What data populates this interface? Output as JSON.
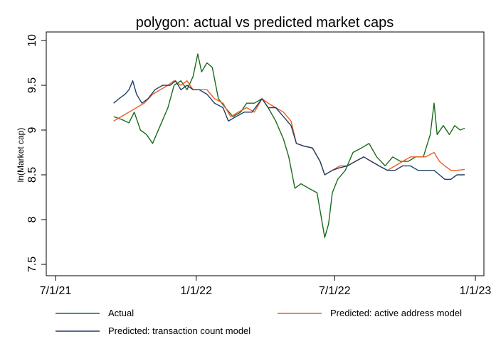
{
  "chart_data": {
    "type": "line",
    "title": "polygon: actual vs predicted market caps",
    "xlabel": "",
    "ylabel": "ln(Market cap)",
    "xlim": [
      "2021-07-01",
      "2023-01-01"
    ],
    "ylim": [
      7.5,
      10
    ],
    "x_ticks": [
      {
        "date": "2021-07-01",
        "label": "7/1/21"
      },
      {
        "date": "2022-01-01",
        "label": "1/1/22"
      },
      {
        "date": "2022-07-01",
        "label": "7/1/22"
      },
      {
        "date": "2023-01-01",
        "label": "1/1/23"
      }
    ],
    "y_ticks": [
      {
        "value": 7.5,
        "label": "7.5"
      },
      {
        "value": 8,
        "label": "8"
      },
      {
        "value": 8.5,
        "label": "8.5"
      },
      {
        "value": 9,
        "label": "9"
      },
      {
        "value": 9.5,
        "label": "9.5"
      },
      {
        "value": 10,
        "label": "10"
      }
    ],
    "grid": false,
    "legend_position": "bottom",
    "series": [
      {
        "name": "Actual",
        "color": "#1a6b1a",
        "points": [
          [
            "2021-09-15",
            9.15
          ],
          [
            "2021-09-25",
            9.12
          ],
          [
            "2021-10-05",
            9.08
          ],
          [
            "2021-10-12",
            9.2
          ],
          [
            "2021-10-20",
            9.0
          ],
          [
            "2021-10-28",
            8.95
          ],
          [
            "2021-11-05",
            8.85
          ],
          [
            "2021-11-15",
            9.05
          ],
          [
            "2021-11-25",
            9.25
          ],
          [
            "2021-12-03",
            9.5
          ],
          [
            "2021-12-12",
            9.55
          ],
          [
            "2021-12-20",
            9.45
          ],
          [
            "2021-12-28",
            9.6
          ],
          [
            "2022-01-03",
            9.85
          ],
          [
            "2022-01-08",
            9.65
          ],
          [
            "2022-01-15",
            9.75
          ],
          [
            "2022-01-22",
            9.7
          ],
          [
            "2022-01-30",
            9.35
          ],
          [
            "2022-02-08",
            9.25
          ],
          [
            "2022-02-18",
            9.15
          ],
          [
            "2022-02-28",
            9.2
          ],
          [
            "2022-03-08",
            9.3
          ],
          [
            "2022-03-18",
            9.3
          ],
          [
            "2022-03-28",
            9.35
          ],
          [
            "2022-04-05",
            9.25
          ],
          [
            "2022-04-15",
            9.1
          ],
          [
            "2022-04-25",
            8.9
          ],
          [
            "2022-05-02",
            8.7
          ],
          [
            "2022-05-10",
            8.35
          ],
          [
            "2022-05-18",
            8.4
          ],
          [
            "2022-05-28",
            8.35
          ],
          [
            "2022-06-08",
            8.3
          ],
          [
            "2022-06-14",
            8.0
          ],
          [
            "2022-06-18",
            7.8
          ],
          [
            "2022-06-23",
            7.95
          ],
          [
            "2022-06-28",
            8.3
          ],
          [
            "2022-07-05",
            8.45
          ],
          [
            "2022-07-15",
            8.55
          ],
          [
            "2022-07-25",
            8.75
          ],
          [
            "2022-08-05",
            8.8
          ],
          [
            "2022-08-15",
            8.85
          ],
          [
            "2022-08-25",
            8.7
          ],
          [
            "2022-09-05",
            8.6
          ],
          [
            "2022-09-15",
            8.7
          ],
          [
            "2022-09-25",
            8.65
          ],
          [
            "2022-10-05",
            8.65
          ],
          [
            "2022-10-15",
            8.7
          ],
          [
            "2022-10-25",
            8.7
          ],
          [
            "2022-11-03",
            8.95
          ],
          [
            "2022-11-08",
            9.3
          ],
          [
            "2022-11-12",
            8.95
          ],
          [
            "2022-11-20",
            9.05
          ],
          [
            "2022-11-28",
            8.95
          ],
          [
            "2022-12-05",
            9.05
          ],
          [
            "2022-12-12",
            9.0
          ],
          [
            "2022-12-18",
            9.02
          ]
        ]
      },
      {
        "name": "Predicted: active address model",
        "color": "#f15a22",
        "points": [
          [
            "2021-09-15",
            9.1
          ],
          [
            "2021-09-25",
            9.15
          ],
          [
            "2021-10-05",
            9.2
          ],
          [
            "2021-10-15",
            9.25
          ],
          [
            "2021-10-25",
            9.3
          ],
          [
            "2021-11-05",
            9.4
          ],
          [
            "2021-11-15",
            9.45
          ],
          [
            "2021-11-25",
            9.5
          ],
          [
            "2021-12-03",
            9.55
          ],
          [
            "2021-12-12",
            9.5
          ],
          [
            "2021-12-20",
            9.55
          ],
          [
            "2021-12-28",
            9.45
          ],
          [
            "2022-01-05",
            9.45
          ],
          [
            "2022-01-15",
            9.45
          ],
          [
            "2022-01-25",
            9.35
          ],
          [
            "2022-02-05",
            9.3
          ],
          [
            "2022-02-15",
            9.15
          ],
          [
            "2022-02-25",
            9.2
          ],
          [
            "2022-03-08",
            9.25
          ],
          [
            "2022-03-18",
            9.2
          ],
          [
            "2022-03-28",
            9.35
          ],
          [
            "2022-04-05",
            9.3
          ],
          [
            "2022-04-15",
            9.25
          ],
          [
            "2022-04-25",
            9.2
          ],
          [
            "2022-05-05",
            9.1
          ],
          [
            "2022-05-12",
            8.85
          ],
          [
            "2022-05-22",
            8.82
          ],
          [
            "2022-06-02",
            8.8
          ],
          [
            "2022-06-12",
            8.65
          ],
          [
            "2022-06-18",
            8.5
          ],
          [
            "2022-06-28",
            8.55
          ],
          [
            "2022-07-08",
            8.6
          ],
          [
            "2022-07-18",
            8.6
          ],
          [
            "2022-07-28",
            8.65
          ],
          [
            "2022-08-08",
            8.7
          ],
          [
            "2022-08-18",
            8.65
          ],
          [
            "2022-08-28",
            8.6
          ],
          [
            "2022-09-08",
            8.55
          ],
          [
            "2022-09-18",
            8.6
          ],
          [
            "2022-09-28",
            8.65
          ],
          [
            "2022-10-08",
            8.7
          ],
          [
            "2022-10-18",
            8.7
          ],
          [
            "2022-10-28",
            8.7
          ],
          [
            "2022-11-08",
            8.75
          ],
          [
            "2022-11-15",
            8.65
          ],
          [
            "2022-11-22",
            8.6
          ],
          [
            "2022-11-30",
            8.55
          ],
          [
            "2022-12-08",
            8.55
          ],
          [
            "2022-12-18",
            8.56
          ]
        ]
      },
      {
        "name": "Predicted: transaction count model",
        "color": "#1f3f66",
        "points": [
          [
            "2021-09-15",
            9.3
          ],
          [
            "2021-09-22",
            9.35
          ],
          [
            "2021-09-30",
            9.4
          ],
          [
            "2021-10-05",
            9.45
          ],
          [
            "2021-10-10",
            9.55
          ],
          [
            "2021-10-15",
            9.4
          ],
          [
            "2021-10-22",
            9.3
          ],
          [
            "2021-10-30",
            9.35
          ],
          [
            "2021-11-08",
            9.45
          ],
          [
            "2021-11-18",
            9.5
          ],
          [
            "2021-11-28",
            9.5
          ],
          [
            "2021-12-05",
            9.55
          ],
          [
            "2021-12-12",
            9.45
          ],
          [
            "2021-12-20",
            9.5
          ],
          [
            "2021-12-28",
            9.45
          ],
          [
            "2022-01-05",
            9.45
          ],
          [
            "2022-01-15",
            9.4
          ],
          [
            "2022-01-25",
            9.3
          ],
          [
            "2022-02-05",
            9.25
          ],
          [
            "2022-02-12",
            9.1
          ],
          [
            "2022-02-22",
            9.15
          ],
          [
            "2022-03-05",
            9.2
          ],
          [
            "2022-03-15",
            9.2
          ],
          [
            "2022-03-28",
            9.35
          ],
          [
            "2022-04-05",
            9.25
          ],
          [
            "2022-04-15",
            9.25
          ],
          [
            "2022-04-25",
            9.15
          ],
          [
            "2022-05-05",
            9.05
          ],
          [
            "2022-05-12",
            8.85
          ],
          [
            "2022-05-22",
            8.82
          ],
          [
            "2022-06-02",
            8.8
          ],
          [
            "2022-06-12",
            8.65
          ],
          [
            "2022-06-18",
            8.5
          ],
          [
            "2022-06-28",
            8.55
          ],
          [
            "2022-07-08",
            8.58
          ],
          [
            "2022-07-18",
            8.6
          ],
          [
            "2022-07-28",
            8.65
          ],
          [
            "2022-08-08",
            8.7
          ],
          [
            "2022-08-18",
            8.65
          ],
          [
            "2022-08-28",
            8.6
          ],
          [
            "2022-09-08",
            8.55
          ],
          [
            "2022-09-18",
            8.55
          ],
          [
            "2022-09-28",
            8.6
          ],
          [
            "2022-10-08",
            8.6
          ],
          [
            "2022-10-18",
            8.55
          ],
          [
            "2022-10-28",
            8.55
          ],
          [
            "2022-11-08",
            8.55
          ],
          [
            "2022-11-15",
            8.5
          ],
          [
            "2022-11-22",
            8.45
          ],
          [
            "2022-11-30",
            8.45
          ],
          [
            "2022-12-08",
            8.5
          ],
          [
            "2022-12-18",
            8.5
          ]
        ]
      }
    ]
  }
}
